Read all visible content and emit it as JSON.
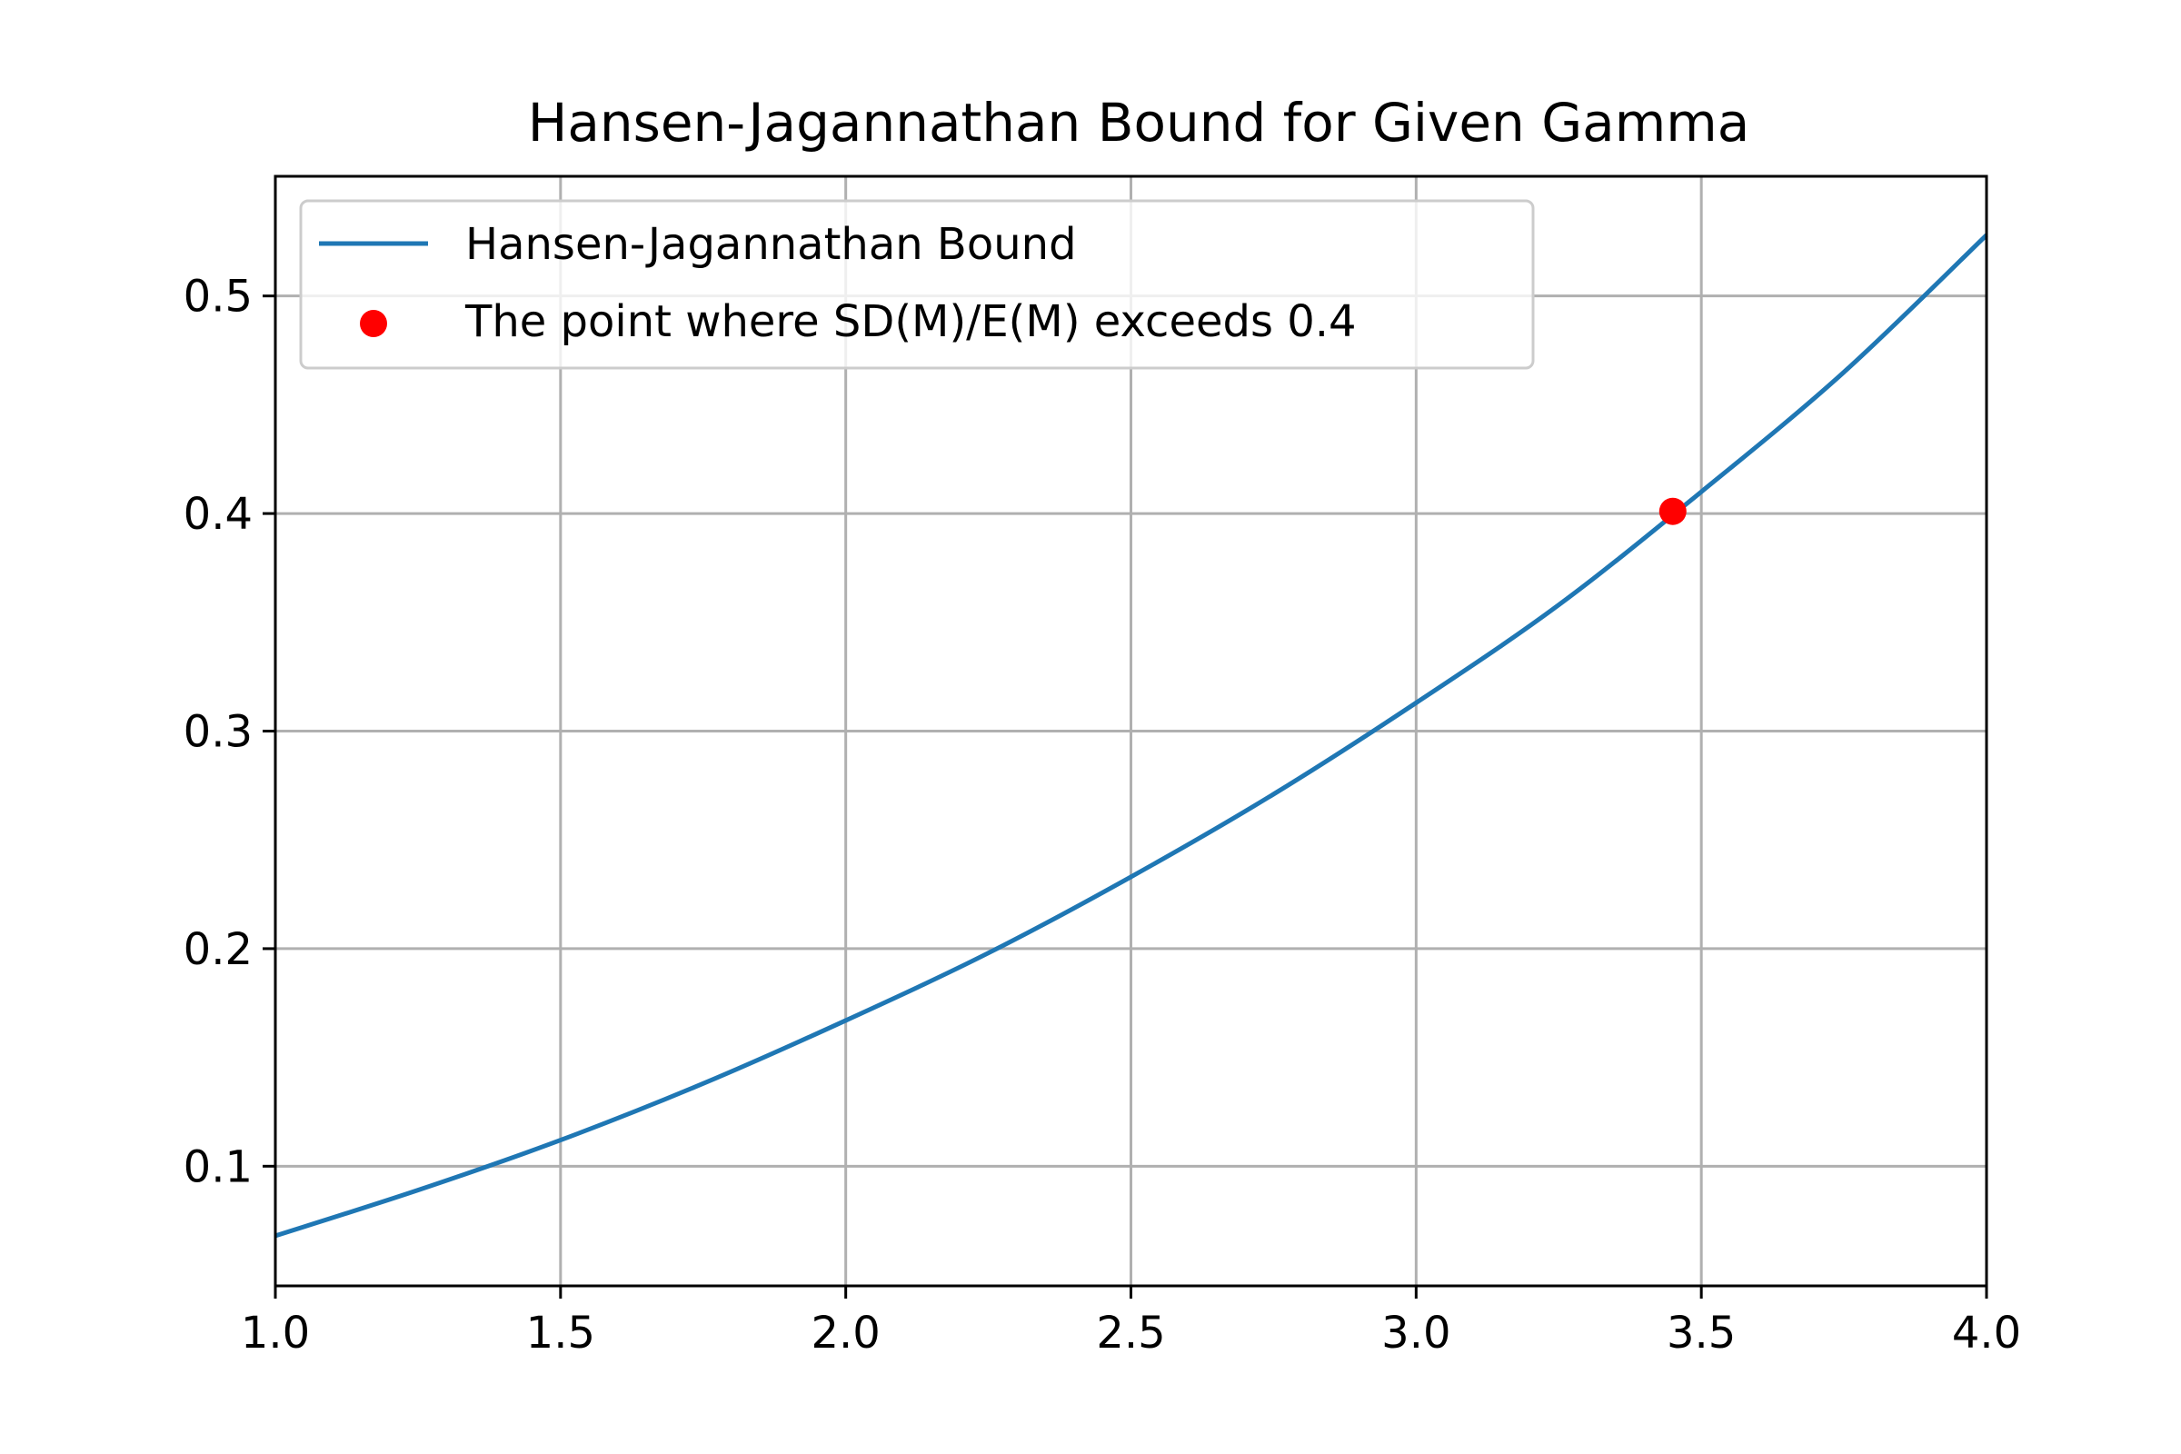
{
  "chart_data": {
    "type": "line",
    "title": "Hansen-Jagannathan Bound for Given Gamma",
    "xlabel": "",
    "ylabel": "",
    "xlim": [
      1.0,
      4.0
    ],
    "ylim": [
      0.045,
      0.555
    ],
    "x_ticks": [
      "1.0",
      "1.5",
      "2.0",
      "2.5",
      "3.0",
      "3.5",
      "4.0"
    ],
    "y_ticks": [
      "0.1",
      "0.2",
      "0.3",
      "0.4",
      "0.5"
    ],
    "grid": true,
    "legend_position": "upper-left",
    "series": [
      {
        "name": "Hansen-Jagannathan Bound",
        "color": "#1f77b4",
        "x": [
          1.0,
          1.25,
          1.5,
          1.75,
          2.0,
          2.25,
          2.5,
          2.75,
          3.0,
          3.25,
          3.5,
          3.75,
          4.0
        ],
        "y": [
          0.068,
          0.089,
          0.112,
          0.138,
          0.167,
          0.198,
          0.233,
          0.271,
          0.313,
          0.358,
          0.41,
          0.465,
          0.528
        ]
      }
    ],
    "points": [
      {
        "name": "The point where SD(M)/E(M) exceeds 0.4",
        "color": "#ff0000",
        "x": 3.45,
        "y": 0.401
      }
    ]
  }
}
